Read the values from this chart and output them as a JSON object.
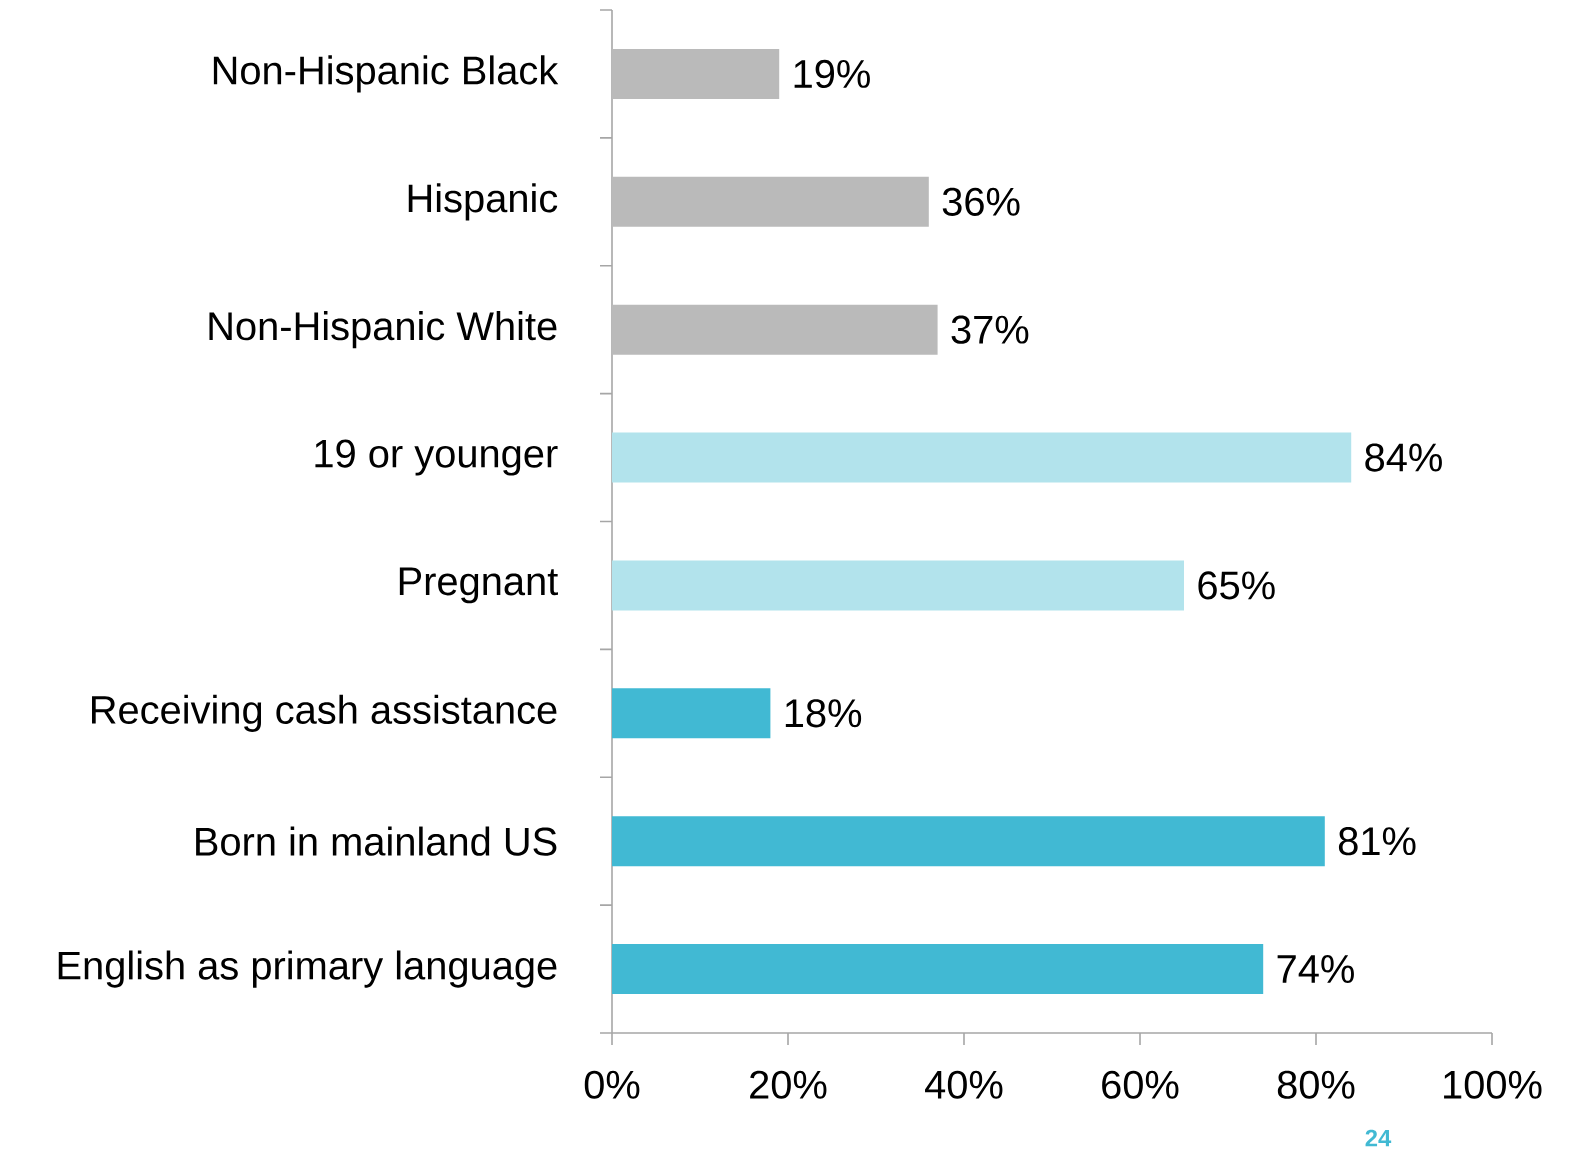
{
  "chart_data": {
    "type": "bar",
    "orientation": "horizontal",
    "categories": [
      "Non-Hispanic Black",
      "Hispanic",
      "Non-Hispanic White",
      "19 or younger",
      "Pregnant",
      "Receiving cash assistance",
      "Born in mainland US",
      "English as primary language"
    ],
    "values": [
      19,
      36,
      37,
      84,
      65,
      18,
      81,
      74
    ],
    "colors": [
      "#bababa",
      "#bababa",
      "#bababa",
      "#b2e3ec",
      "#b2e3ec",
      "#41b9d3",
      "#41b9d3",
      "#41b9d3"
    ],
    "value_labels": [
      "19%",
      "36%",
      "37%",
      "84%",
      "65%",
      "18%",
      "81%",
      "74%"
    ],
    "xlim": [
      0,
      100
    ],
    "xticks": [
      {
        "value": 0,
        "label": "0%"
      },
      {
        "value": 20,
        "label": "20%"
      },
      {
        "value": 40,
        "label": "40%"
      },
      {
        "value": 60,
        "label": "60%"
      },
      {
        "value": 80,
        "label": "80%"
      },
      {
        "value": 100,
        "label": "100%"
      }
    ],
    "grid": false,
    "annotations": [
      "24"
    ]
  }
}
